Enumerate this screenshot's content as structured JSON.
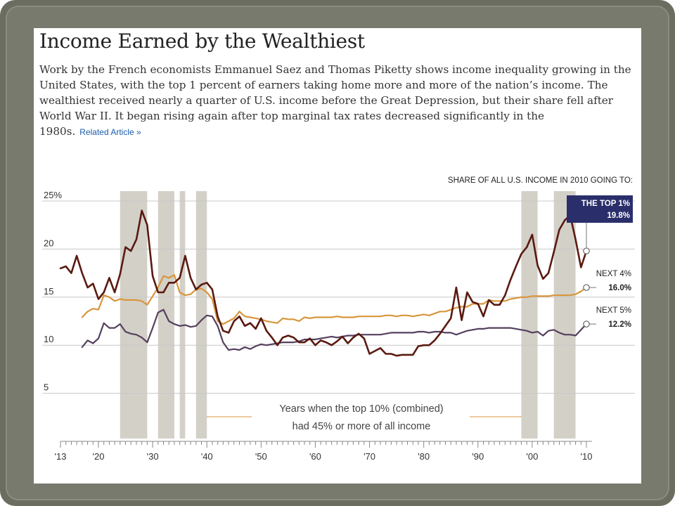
{
  "header": {
    "title": "Income Earned by the Wealthiest",
    "description": "Work by the French economists Emmanuel Saez and Thomas Piketty shows income inequality growing in the United States, with the top 1 percent of earners taking home more and more of the nation’s income. The wealthiest received nearly a quarter of U.S. income before the Great Depression, but their share fell after World War II. It began rising again after top marginal tax rates decreased significantly in the 1980s.",
    "related_link": "Related Article »"
  },
  "chart_data": {
    "type": "line",
    "title": "Income Earned by the Wealthiest",
    "annotation": "SHARE OF ALL U.S. INCOME IN 2010 GOING TO:",
    "shading_note": [
      "Years when the top 10% (combined)",
      "had 45% or more of all income"
    ],
    "xlabel": "",
    "ylabel": "",
    "xlim": [
      1913,
      2010
    ],
    "ylim": [
      0,
      25
    ],
    "y_ticks": [
      "25%",
      "20",
      "15",
      "10",
      "5"
    ],
    "y_tick_values": [
      25,
      20,
      15,
      10,
      5
    ],
    "x_ticks": [
      "'13",
      "'20",
      "'30",
      "'40",
      "'50",
      "'60",
      "'70",
      "'80",
      "'90",
      "'00",
      "'10"
    ],
    "x_tick_values": [
      1913,
      1920,
      1930,
      1940,
      1950,
      1960,
      1970,
      1980,
      1990,
      2000,
      2010
    ],
    "grid": true,
    "shaded_periods": [
      [
        1924,
        1929
      ],
      [
        1931,
        1934
      ],
      [
        1935,
        1936
      ],
      [
        1938,
        1940
      ],
      [
        1998,
        2001
      ],
      [
        2004,
        2008
      ]
    ],
    "colors": {
      "top1": "#5a1a10",
      "next4": "#d8963c",
      "next5": "#55405e",
      "shade": "#d3d0c8",
      "label_box": "#2a2f6b"
    },
    "series": [
      {
        "name": "THE TOP 1%",
        "end_value_label": "19.8%",
        "x": [
          1913,
          1914,
          1915,
          1916,
          1917,
          1918,
          1919,
          1920,
          1921,
          1922,
          1923,
          1924,
          1925,
          1926,
          1927,
          1928,
          1929,
          1930,
          1931,
          1932,
          1933,
          1934,
          1935,
          1936,
          1937,
          1938,
          1939,
          1940,
          1941,
          1942,
          1943,
          1944,
          1945,
          1946,
          1947,
          1948,
          1949,
          1950,
          1951,
          1952,
          1953,
          1954,
          1955,
          1956,
          1957,
          1958,
          1959,
          1960,
          1961,
          1962,
          1963,
          1964,
          1965,
          1966,
          1967,
          1968,
          1969,
          1970,
          1971,
          1972,
          1973,
          1974,
          1975,
          1976,
          1977,
          1978,
          1979,
          1980,
          1981,
          1982,
          1983,
          1984,
          1985,
          1986,
          1987,
          1988,
          1989,
          1990,
          1991,
          1992,
          1993,
          1994,
          1995,
          1996,
          1997,
          1998,
          1999,
          2000,
          2001,
          2002,
          2003,
          2004,
          2005,
          2006,
          2007,
          2008,
          2009,
          2010
        ],
        "values": [
          18.0,
          18.2,
          17.5,
          19.3,
          17.5,
          16.0,
          16.4,
          14.8,
          15.5,
          17.0,
          15.5,
          17.4,
          20.2,
          19.8,
          21.0,
          24.0,
          22.5,
          17.2,
          15.5,
          15.5,
          16.5,
          16.5,
          17.0,
          19.3,
          17.0,
          15.8,
          16.3,
          16.5,
          15.8,
          13.0,
          11.5,
          11.3,
          12.5,
          13.0,
          12.0,
          12.3,
          11.7,
          12.8,
          11.5,
          10.8,
          10.0,
          10.8,
          11.0,
          10.8,
          10.3,
          10.3,
          10.7,
          10.0,
          10.5,
          10.3,
          10.0,
          10.4,
          10.9,
          10.2,
          10.8,
          11.2,
          10.7,
          9.1,
          9.4,
          9.7,
          9.1,
          9.1,
          8.9,
          9.0,
          9.0,
          9.0,
          9.9,
          10.0,
          10.0,
          10.5,
          11.2,
          12.0,
          12.8,
          16.0,
          12.6,
          15.5,
          14.5,
          14.3,
          13.0,
          14.7,
          14.2,
          14.2,
          15.2,
          16.8,
          18.2,
          19.5,
          20.2,
          21.5,
          18.3,
          16.9,
          17.5,
          19.7,
          22.0,
          23.0,
          23.5,
          21.0,
          18.1,
          19.8
        ]
      },
      {
        "name": "NEXT 4%",
        "end_value_label": "16.0%",
        "x": [
          1917,
          1918,
          1919,
          1920,
          1921,
          1922,
          1923,
          1924,
          1925,
          1926,
          1927,
          1928,
          1929,
          1930,
          1931,
          1932,
          1933,
          1934,
          1935,
          1936,
          1937,
          1938,
          1939,
          1940,
          1941,
          1942,
          1943,
          1944,
          1945,
          1946,
          1947,
          1948,
          1949,
          1950,
          1951,
          1952,
          1953,
          1954,
          1955,
          1956,
          1957,
          1958,
          1959,
          1960,
          1961,
          1962,
          1963,
          1964,
          1965,
          1966,
          1967,
          1968,
          1969,
          1970,
          1971,
          1972,
          1973,
          1974,
          1975,
          1976,
          1977,
          1978,
          1979,
          1980,
          1981,
          1982,
          1983,
          1984,
          1985,
          1986,
          1987,
          1988,
          1989,
          1990,
          1991,
          1992,
          1993,
          1994,
          1995,
          1996,
          1997,
          1998,
          1999,
          2000,
          2001,
          2002,
          2003,
          2004,
          2005,
          2006,
          2007,
          2008,
          2009,
          2010
        ],
        "values": [
          12.9,
          13.5,
          13.8,
          13.7,
          15.2,
          15.0,
          14.6,
          14.8,
          14.7,
          14.7,
          14.7,
          14.6,
          14.2,
          15.1,
          16.0,
          17.2,
          17.0,
          17.3,
          15.5,
          15.2,
          15.3,
          15.8,
          15.9,
          15.5,
          14.8,
          12.5,
          12.2,
          12.5,
          12.8,
          13.5,
          13.0,
          12.9,
          12.8,
          12.7,
          12.5,
          12.4,
          12.3,
          12.8,
          12.7,
          12.7,
          12.5,
          12.9,
          12.8,
          12.9,
          12.9,
          12.9,
          12.9,
          13.0,
          12.9,
          12.9,
          12.9,
          13.0,
          13.0,
          13.0,
          13.0,
          13.0,
          13.1,
          13.1,
          13.0,
          13.1,
          13.1,
          13.0,
          13.1,
          13.2,
          13.1,
          13.3,
          13.5,
          13.5,
          13.7,
          13.9,
          14.0,
          14.0,
          14.3,
          14.3,
          14.3,
          14.7,
          14.6,
          14.6,
          14.6,
          14.8,
          14.9,
          15.0,
          15.0,
          15.1,
          15.1,
          15.1,
          15.1,
          15.2,
          15.2,
          15.2,
          15.2,
          15.3,
          15.6,
          16.0
        ]
      },
      {
        "name": "NEXT 5%",
        "end_value_label": "12.2%",
        "x": [
          1917,
          1918,
          1919,
          1920,
          1921,
          1922,
          1923,
          1924,
          1925,
          1926,
          1927,
          1928,
          1929,
          1930,
          1931,
          1932,
          1933,
          1934,
          1935,
          1936,
          1937,
          1938,
          1939,
          1940,
          1941,
          1942,
          1943,
          1944,
          1945,
          1946,
          1947,
          1948,
          1949,
          1950,
          1951,
          1952,
          1953,
          1954,
          1955,
          1956,
          1957,
          1958,
          1959,
          1960,
          1961,
          1962,
          1963,
          1964,
          1965,
          1966,
          1967,
          1968,
          1969,
          1970,
          1971,
          1972,
          1973,
          1974,
          1975,
          1976,
          1977,
          1978,
          1979,
          1980,
          1981,
          1982,
          1983,
          1984,
          1985,
          1986,
          1987,
          1988,
          1989,
          1990,
          1991,
          1992,
          1993,
          1994,
          1995,
          1996,
          1997,
          1998,
          1999,
          2000,
          2001,
          2002,
          2003,
          2004,
          2005,
          2006,
          2007,
          2008,
          2009,
          2010
        ],
        "values": [
          9.8,
          10.5,
          10.2,
          10.7,
          12.3,
          11.8,
          11.8,
          12.2,
          11.4,
          11.2,
          11.1,
          10.8,
          10.3,
          11.8,
          13.4,
          13.7,
          12.5,
          12.2,
          12.0,
          12.1,
          11.9,
          12.0,
          12.6,
          13.1,
          13.0,
          12.0,
          10.3,
          9.5,
          9.6,
          9.5,
          9.8,
          9.6,
          9.9,
          10.1,
          10.0,
          10.1,
          10.2,
          10.3,
          10.3,
          10.3,
          10.4,
          10.6,
          10.6,
          10.6,
          10.7,
          10.8,
          10.9,
          10.8,
          10.9,
          11.0,
          11.0,
          11.1,
          11.1,
          11.1,
          11.1,
          11.1,
          11.2,
          11.3,
          11.3,
          11.3,
          11.3,
          11.3,
          11.4,
          11.4,
          11.3,
          11.4,
          11.4,
          11.3,
          11.3,
          11.1,
          11.3,
          11.5,
          11.6,
          11.7,
          11.7,
          11.8,
          11.8,
          11.8,
          11.8,
          11.8,
          11.7,
          11.6,
          11.5,
          11.3,
          11.4,
          11.0,
          11.5,
          11.6,
          11.3,
          11.1,
          11.1,
          11.0,
          11.6,
          12.2
        ]
      }
    ]
  }
}
